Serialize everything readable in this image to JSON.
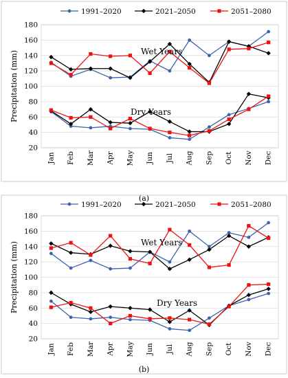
{
  "chart_data": [
    {
      "id": "a",
      "panel_label": "(a)",
      "type": "line",
      "ylabel": "Precipitation  (mm)",
      "ylim": [
        20,
        180
      ],
      "yticks": [
        20,
        40,
        60,
        80,
        100,
        120,
        140,
        160,
        180
      ],
      "grid": true,
      "legend": "top",
      "categories": [
        "Jan",
        "Feb",
        "Mar",
        "Apr",
        "May",
        "Jun",
        "Jul",
        "Aug",
        "Sep",
        "Oct",
        "Nov",
        "Dec"
      ],
      "annotations": [
        "Wet Years",
        "Dry Years"
      ],
      "series": [
        {
          "name": "1991–2020",
          "group": "wet",
          "values": [
            131,
            113,
            122,
            111,
            112,
            133,
            120,
            160,
            140,
            158,
            152,
            171
          ]
        },
        {
          "name": "2021–2050",
          "group": "wet",
          "values": [
            138,
            122,
            123,
            123,
            111,
            132,
            155,
            129,
            105,
            158,
            152,
            143
          ]
        },
        {
          "name": "2051–2080",
          "group": "wet",
          "values": [
            130,
            115,
            142,
            139,
            140,
            117,
            145,
            124,
            104,
            148,
            149,
            157
          ]
        },
        {
          "name": "1991–2020",
          "group": "dry",
          "values": [
            67,
            48,
            46,
            48,
            45,
            44,
            33,
            31,
            47,
            63,
            71,
            80
          ]
        },
        {
          "name": "2021–2050",
          "group": "dry",
          "values": [
            68,
            51,
            70,
            53,
            52,
            67,
            54,
            41,
            41,
            51,
            90,
            85
          ]
        },
        {
          "name": "2051–2080",
          "group": "dry",
          "values": [
            69,
            59,
            60,
            45,
            58,
            45,
            40,
            36,
            42,
            57,
            70,
            87
          ]
        }
      ]
    },
    {
      "id": "b",
      "panel_label": "(b)",
      "type": "line",
      "ylabel": "Precipitation  (mm)",
      "ylim": [
        20,
        180
      ],
      "yticks": [
        20,
        40,
        60,
        80,
        100,
        120,
        140,
        160,
        180
      ],
      "grid": true,
      "legend": "top",
      "categories": [
        "Jan",
        "Feb",
        "Mar",
        "Apr",
        "May",
        "Jun",
        "Jul",
        "Aug",
        "Sep",
        "Oct",
        "Nov",
        "Dec"
      ],
      "annotations": [
        "Wet Years",
        "Dry Years"
      ],
      "series": [
        {
          "name": "1991–2020",
          "group": "wet",
          "values": [
            131,
            112,
            122,
            111,
            112,
            133,
            120,
            160,
            140,
            158,
            152,
            171
          ]
        },
        {
          "name": "2021–2050",
          "group": "wet",
          "values": [
            144,
            132,
            130,
            141,
            134,
            133,
            111,
            123,
            136,
            154,
            140,
            152
          ]
        },
        {
          "name": "2051–2080",
          "group": "wet",
          "values": [
            138,
            145,
            129,
            154,
            124,
            118,
            162,
            142,
            113,
            116,
            167,
            151
          ]
        },
        {
          "name": "1991–2020",
          "group": "dry",
          "values": [
            69,
            48,
            46,
            48,
            45,
            44,
            33,
            31,
            47,
            63,
            71,
            79
          ]
        },
        {
          "name": "2021–2050",
          "group": "dry",
          "values": [
            80,
            65,
            55,
            62,
            60,
            58,
            42,
            57,
            38,
            63,
            77,
            85
          ]
        },
        {
          "name": "2051–2080",
          "group": "dry",
          "values": [
            61,
            67,
            60,
            40,
            50,
            46,
            47,
            45,
            39,
            62,
            90,
            91
          ]
        }
      ]
    }
  ],
  "legend_series": [
    {
      "name": "1991–2020",
      "color": "#3b64ad",
      "marker": "circle"
    },
    {
      "name": "2021–2050",
      "color": "#000000",
      "marker": "diamond"
    },
    {
      "name": "2051–2080",
      "color": "#ee1111",
      "marker": "square"
    }
  ]
}
